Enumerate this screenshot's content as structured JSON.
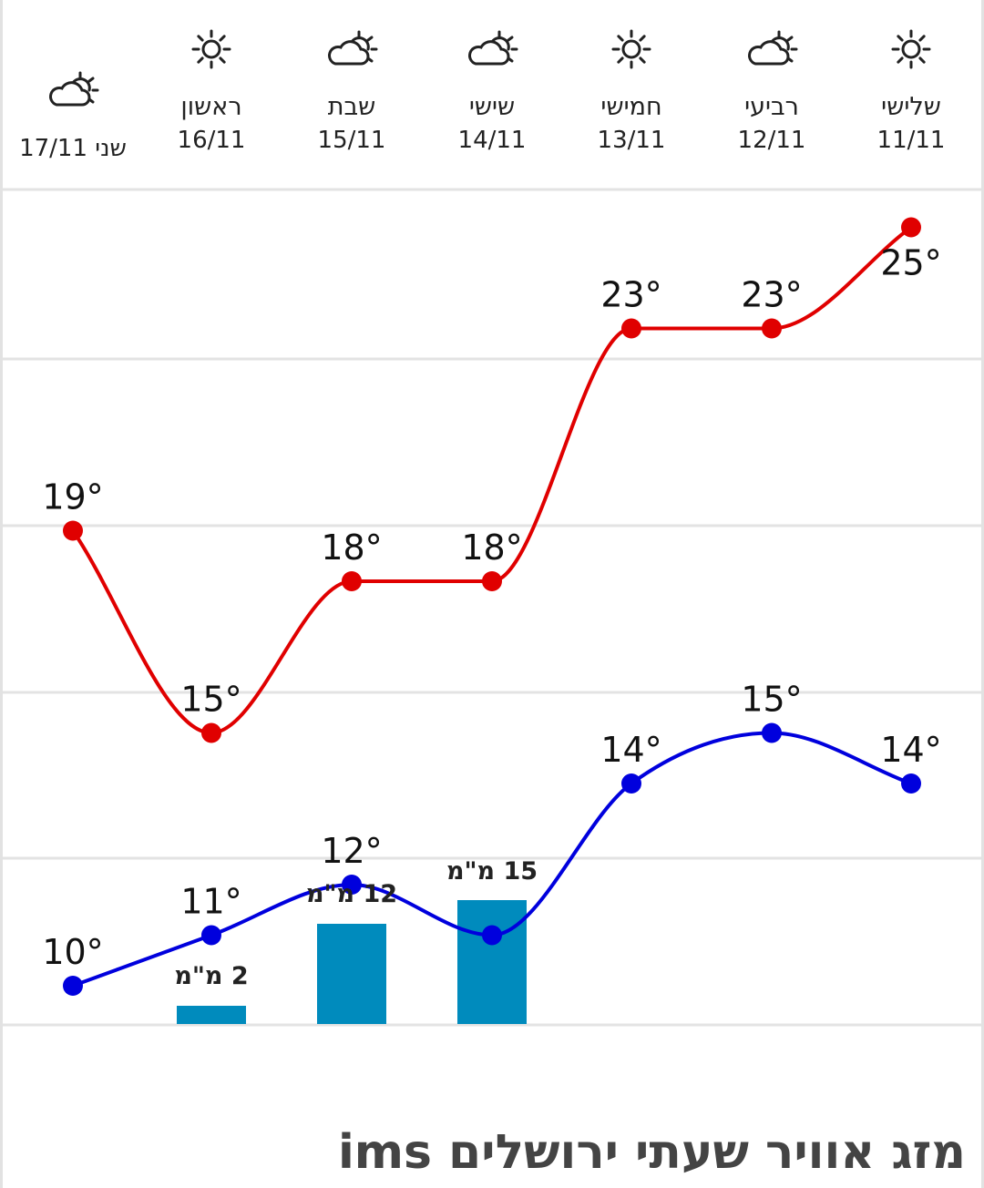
{
  "days": [
    {
      "name": "שני",
      "date": "17/11",
      "icon": "partly-cloudy-icon"
    },
    {
      "name": "ראשון",
      "date": "16/11",
      "icon": "sun-icon"
    },
    {
      "name": "שבת",
      "date": "15/11",
      "icon": "partly-cloudy-icon"
    },
    {
      "name": "שישי",
      "date": "14/11",
      "icon": "partly-cloudy-icon"
    },
    {
      "name": "חמישי",
      "date": "13/11",
      "icon": "sun-icon"
    },
    {
      "name": "רביעי",
      "date": "12/11",
      "icon": "partly-cloudy-icon"
    },
    {
      "name": "שלישי",
      "date": "11/11",
      "icon": "sun-icon"
    }
  ],
  "chart_data": {
    "type": "line",
    "categories": [
      "17/11",
      "16/11",
      "15/11",
      "14/11",
      "13/11",
      "12/11",
      "11/11"
    ],
    "series": [
      {
        "values": [
          19,
          15,
          18,
          18,
          23,
          23,
          25
        ],
        "color": "#e00000"
      },
      {
        "values": [
          10,
          11,
          12,
          11,
          14,
          15,
          14
        ],
        "color": "#0000dd"
      }
    ],
    "temp_labels_high": [
      "19°",
      "15°",
      "18°",
      "18°",
      "23°",
      "23°",
      "25°"
    ],
    "temp_labels_low": [
      "10°",
      "11°",
      "12°",
      "",
      "14°",
      "15°",
      "14°"
    ],
    "rain": {
      "values": [
        null,
        2,
        12,
        15,
        null,
        null,
        null
      ],
      "labels": [
        "",
        "2 מ\"מ",
        "12 מ\"מ",
        "15 מ\"מ",
        "",
        "",
        ""
      ],
      "color": "#008bbd"
    },
    "grid": true,
    "ylim": [
      9,
      26
    ]
  },
  "footer": {
    "title": "מזג אוויר שעתי ירושלים ims"
  }
}
